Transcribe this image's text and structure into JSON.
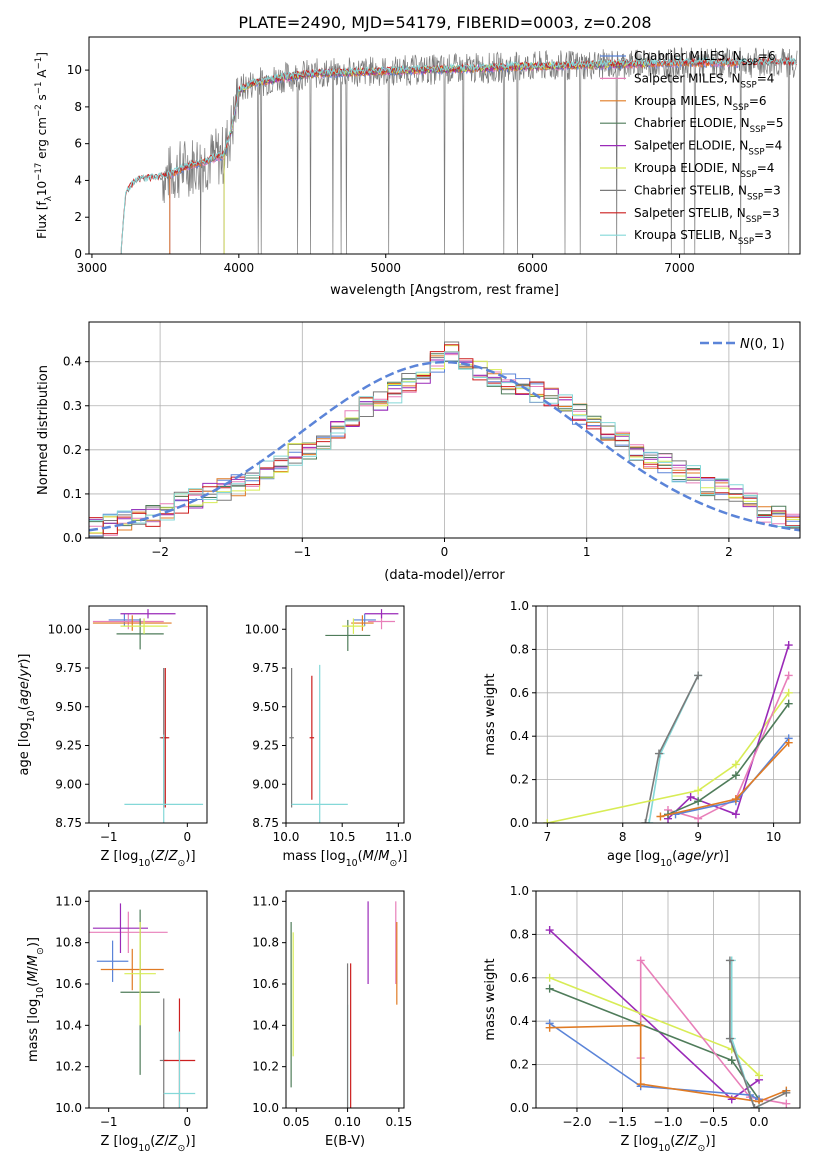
{
  "figure": {
    "title": "PLATE=2490, MJD=54179, FIBERID=0003, z=0.208"
  },
  "colors": {
    "chabrier_miles": "#5b84d8",
    "salpeter_miles": "#e87fb9",
    "kroupa_miles": "#e07b24",
    "chabrier_elodie": "#4f7c5a",
    "salpeter_elodie": "#9a2ab8",
    "kroupa_elodie": "#d8ec55",
    "chabrier_stelib": "#7a7a7a",
    "salpeter_stelib": "#cc1f1f",
    "kroupa_stelib": "#84d8d8",
    "normal": "#5b84d8",
    "grid": "#b0b0b0"
  },
  "chart_data": [
    {
      "id": "spectrum",
      "type": "line",
      "xlabel": "wavelength [Angstrom, rest frame]",
      "ylabel_parts": [
        "Flux [f",
        "λ",
        "10",
        "−17",
        " erg cm",
        "−2",
        " s",
        "−1",
        " A",
        "−1",
        "]"
      ],
      "xlim": [
        2980,
        7820
      ],
      "ylim": [
        0,
        11.8
      ],
      "xticks": [
        3000,
        4000,
        5000,
        6000,
        7000
      ],
      "yticks": [
        0,
        2,
        4,
        6,
        8,
        10
      ],
      "grid": false,
      "legend_position": "right",
      "legend": [
        {
          "label": "Chabrier MILES, N",
          "sub": "SSP",
          "tail": "=6",
          "color": "#5b84d8"
        },
        {
          "label": "Salpeter MILES, N",
          "sub": "SSP",
          "tail": "=4",
          "color": "#e87fb9"
        },
        {
          "label": "Kroupa MILES, N",
          "sub": "SSP",
          "tail": "=6",
          "color": "#e07b24"
        },
        {
          "label": "Chabrier ELODIE, N",
          "sub": "SSP",
          "tail": "=5",
          "color": "#4f7c5a"
        },
        {
          "label": "Salpeter ELODIE, N",
          "sub": "SSP",
          "tail": "=4",
          "color": "#9a2ab8"
        },
        {
          "label": "Kroupa ELODIE, N",
          "sub": "SSP",
          "tail": "=4",
          "color": "#d8ec55"
        },
        {
          "label": "Chabrier STELIB, N",
          "sub": "SSP",
          "tail": "=3",
          "color": "#7a7a7a"
        },
        {
          "label": "Salpeter STELIB, N",
          "sub": "SSP",
          "tail": "=3",
          "color": "#cc1f1f"
        },
        {
          "label": "Kroupa STELIB, N",
          "sub": "SSP",
          "tail": "=3",
          "color": "#84d8d8"
        }
      ],
      "model_continuum": {
        "x": [
          3200,
          3230,
          3300,
          3400,
          3500,
          3600,
          3700,
          3800,
          3900,
          3950,
          4000,
          4100,
          4300,
          4500,
          4800,
          5200,
          5600,
          6000,
          6500,
          7000,
          7500,
          7800
        ],
        "y": [
          0.3,
          3.3,
          4.0,
          4.1,
          4.2,
          4.6,
          4.9,
          5.1,
          5.4,
          6.8,
          8.9,
          9.3,
          9.6,
          9.8,
          9.9,
          10.0,
          10.1,
          10.2,
          10.3,
          10.4,
          10.4,
          10.4
        ]
      },
      "model_start_wavelength": {
        "Chabrier MILES": 3530,
        "Salpeter MILES": 3530,
        "Kroupa MILES": 3530,
        "Chabrier ELODIE": 3900,
        "Salpeter ELODIE": 3900,
        "Kroupa ELODIE": 3900,
        "Chabrier STELIB": 3200,
        "Salpeter STELIB": 3200,
        "Kroupa STELIB": 3200
      },
      "model_end_wavelength": {
        "Chabrier MILES": 7400,
        "Salpeter MILES": 7400,
        "Kroupa MILES": 7400,
        "Chabrier ELODIE": 6800,
        "Salpeter ELODIE": 6800,
        "Kroupa ELODIE": 6800,
        "Chabrier STELIB": 7800,
        "Salpeter STELIB": 7800,
        "Kroupa STELIB": 7800
      },
      "data_spectrum": {
        "x_range": [
          3480,
          7800
        ],
        "noise_amplitude": 1.2
      }
    },
    {
      "id": "residuals",
      "type": "histogram",
      "xlabel": "(data-model)/error",
      "ylabel": "Normed distribution",
      "xlim": [
        -2.5,
        2.5
      ],
      "ylim": [
        0,
        0.49
      ],
      "xticks": [
        -2,
        -1,
        0,
        1,
        2
      ],
      "yticks": [
        0.0,
        0.1,
        0.2,
        0.3,
        0.4
      ],
      "grid": true,
      "legend_position": "top-right",
      "legend_label": "N(0,1)",
      "bins": {
        "start": -2.5,
        "width": 0.1,
        "count": 50
      },
      "base_curve": [
        0.025,
        0.03,
        0.04,
        0.05,
        0.05,
        0.06,
        0.08,
        0.09,
        0.1,
        0.11,
        0.12,
        0.13,
        0.15,
        0.17,
        0.19,
        0.2,
        0.22,
        0.24,
        0.27,
        0.3,
        0.31,
        0.33,
        0.35,
        0.37,
        0.4,
        0.42,
        0.4,
        0.38,
        0.36,
        0.35,
        0.34,
        0.33,
        0.32,
        0.3,
        0.28,
        0.26,
        0.24,
        0.22,
        0.2,
        0.18,
        0.17,
        0.15,
        0.14,
        0.12,
        0.11,
        0.1,
        0.08,
        0.06,
        0.05,
        0.04
      ]
    },
    {
      "id": "age_vs_Z",
      "type": "scatter",
      "xlabel": "Z [log10(Z/Z⊙)]",
      "ylabel": "age  [log10(age/yr)]",
      "xlim": [
        -1.25,
        0.25
      ],
      "ylim": [
        8.75,
        10.15
      ],
      "xticks": [
        -1,
        0
      ],
      "yticks": [
        8.75,
        9.0,
        9.25,
        9.5,
        9.75,
        10.0
      ],
      "grid": false,
      "points": [
        {
          "model": "Chabrier MILES",
          "color": "#5b84d8",
          "x": -0.8,
          "xerr": 0.2,
          "y": 10.06,
          "yerr": 0.04
        },
        {
          "model": "Salpeter MILES",
          "color": "#e87fb9",
          "x": -0.75,
          "xerr": 0.45,
          "y": 10.05,
          "yerr": 0.05
        },
        {
          "model": "Kroupa MILES",
          "color": "#e07b24",
          "x": -0.7,
          "xerr": 0.5,
          "y": 10.04,
          "yerr": 0.05
        },
        {
          "model": "Chabrier ELODIE",
          "color": "#4f7c5a",
          "x": -0.6,
          "xerr": 0.3,
          "y": 9.97,
          "yerr": 0.1
        },
        {
          "model": "Salpeter ELODIE",
          "color": "#9a2ab8",
          "x": -0.5,
          "xerr": 0.35,
          "y": 10.1,
          "yerr": 0.03
        },
        {
          "model": "Kroupa ELODIE",
          "color": "#d8ec55",
          "x": -0.55,
          "xerr": 0.3,
          "y": 10.02,
          "yerr": 0.05
        },
        {
          "model": "Chabrier STELIB",
          "color": "#7a7a7a",
          "x": -0.3,
          "xerr": 0.05,
          "y": 9.3,
          "yerr": 0.45
        },
        {
          "model": "Salpeter STELIB",
          "color": "#cc1f1f",
          "x": -0.28,
          "xerr": 0.05,
          "y": 9.3,
          "yerr": 0.45
        },
        {
          "model": "Kroupa STELIB",
          "color": "#84d8d8",
          "x": -0.3,
          "xerr": 0.5,
          "y": 8.87,
          "yerr": 0.45
        }
      ]
    },
    {
      "id": "age_vs_mass",
      "type": "scatter",
      "xlabel": "mass [log10(M/M⊙)]",
      "ylabel": "",
      "xlim": [
        10.0,
        11.05
      ],
      "ylim": [
        8.75,
        10.15
      ],
      "xticks": [
        10.0,
        10.5,
        11.0
      ],
      "yticks": [
        8.75,
        9.0,
        9.25,
        9.5,
        9.75,
        10.0
      ],
      "grid": false,
      "points": [
        {
          "model": "Chabrier MILES",
          "color": "#5b84d8",
          "x": 10.7,
          "xerr": 0.1,
          "y": 10.06,
          "yerr": 0.04
        },
        {
          "model": "Salpeter MILES",
          "color": "#e87fb9",
          "x": 10.85,
          "xerr": 0.12,
          "y": 10.05,
          "yerr": 0.05
        },
        {
          "model": "Kroupa MILES",
          "color": "#e07b24",
          "x": 10.68,
          "xerr": 0.1,
          "y": 10.04,
          "yerr": 0.05
        },
        {
          "model": "Chabrier ELODIE",
          "color": "#4f7c5a",
          "x": 10.55,
          "xerr": 0.2,
          "y": 9.96,
          "yerr": 0.1
        },
        {
          "model": "Salpeter ELODIE",
          "color": "#9a2ab8",
          "x": 10.85,
          "xerr": 0.15,
          "y": 10.1,
          "yerr": 0.03
        },
        {
          "model": "Kroupa ELODIE",
          "color": "#d8ec55",
          "x": 10.6,
          "xerr": 0.1,
          "y": 10.02,
          "yerr": 0.05
        },
        {
          "model": "Chabrier STELIB",
          "color": "#7a7a7a",
          "x": 10.05,
          "xerr": 0.02,
          "y": 9.3,
          "yerr": 0.45
        },
        {
          "model": "Salpeter STELIB",
          "color": "#cc1f1f",
          "x": 10.23,
          "xerr": 0.02,
          "y": 9.3,
          "yerr": 0.4
        },
        {
          "model": "Kroupa STELIB",
          "color": "#84d8d8",
          "x": 10.3,
          "xerr": 0.25,
          "y": 8.87,
          "yerr": 0.9
        }
      ]
    },
    {
      "id": "weight_vs_age",
      "type": "line",
      "xlabel": "age  [log10(age/yr)]",
      "ylabel": "mass weight",
      "xlim": [
        6.85,
        10.35
      ],
      "ylim": [
        0,
        1.0
      ],
      "xticks": [
        7,
        8,
        9,
        10
      ],
      "yticks": [
        0.0,
        0.2,
        0.4,
        0.6,
        0.8,
        1.0
      ],
      "grid": true,
      "series": [
        {
          "model": "Kroupa STELIB",
          "color": "#84d8d8",
          "x": [
            8.35,
            8.5,
            9.0
          ],
          "y": [
            0.0,
            0.32,
            0.68
          ]
        },
        {
          "model": "Chabrier STELIB",
          "color": "#7a7a7a",
          "x": [
            8.3,
            8.48,
            9.0
          ],
          "y": [
            0.0,
            0.32,
            0.68
          ]
        },
        {
          "model": "Kroupa ELODIE",
          "color": "#d8ec55",
          "x": [
            7.0,
            9.0,
            9.5,
            10.2
          ],
          "y": [
            0.0,
            0.15,
            0.27,
            0.6
          ]
        },
        {
          "model": "Salpeter ELODIE",
          "color": "#9a2ab8",
          "x": [
            8.6,
            8.9,
            9.5,
            10.2
          ],
          "y": [
            0.02,
            0.12,
            0.04,
            0.82
          ]
        },
        {
          "model": "Salpeter MILES",
          "color": "#e87fb9",
          "x": [
            8.6,
            9.0,
            9.5,
            10.2
          ],
          "y": [
            0.06,
            0.02,
            0.11,
            0.68
          ]
        },
        {
          "model": "Chabrier ELODIE",
          "color": "#4f7c5a",
          "x": [
            8.6,
            9.0,
            9.5,
            10.2
          ],
          "y": [
            0.04,
            0.1,
            0.22,
            0.55
          ]
        },
        {
          "model": "Chabrier MILES",
          "color": "#5b84d8",
          "x": [
            8.7,
            9.5,
            10.2
          ],
          "y": [
            0.04,
            0.1,
            0.39
          ]
        },
        {
          "model": "Kroupa MILES",
          "color": "#e07b24",
          "x": [
            8.5,
            9.5,
            10.2
          ],
          "y": [
            0.03,
            0.11,
            0.37
          ]
        }
      ]
    },
    {
      "id": "mass_vs_Z",
      "type": "scatter",
      "xlabel": "Z [log10(Z/Z⊙)]",
      "ylabel": "mass [log10(M/M⊙)]",
      "xlim": [
        -1.25,
        0.25
      ],
      "ylim": [
        10.0,
        11.05
      ],
      "xticks": [
        -1,
        0
      ],
      "yticks": [
        10.0,
        10.2,
        10.4,
        10.6,
        10.8,
        11.0
      ],
      "grid": false,
      "points": [
        {
          "model": "Chabrier MILES",
          "color": "#5b84d8",
          "x": -0.95,
          "xerr": 0.2,
          "y": 10.71,
          "yerr": 0.1
        },
        {
          "model": "Salpeter MILES",
          "color": "#e87fb9",
          "x": -0.75,
          "xerr": 0.5,
          "y": 10.85,
          "yerr": 0.1
        },
        {
          "model": "Kroupa MILES",
          "color": "#e07b24",
          "x": -0.7,
          "xerr": 0.4,
          "y": 10.67,
          "yerr": 0.1
        },
        {
          "model": "Chabrier ELODIE",
          "color": "#4f7c5a",
          "x": -0.6,
          "xerr": 0.25,
          "y": 10.56,
          "yerr": 0.4
        },
        {
          "model": "Salpeter ELODIE",
          "color": "#9a2ab8",
          "x": -0.85,
          "xerr": 0.35,
          "y": 10.87,
          "yerr": 0.12
        },
        {
          "model": "Kroupa ELODIE",
          "color": "#d8ec55",
          "x": -0.6,
          "xerr": 0.2,
          "y": 10.65,
          "yerr": 0.25
        },
        {
          "model": "Chabrier STELIB",
          "color": "#7a7a7a",
          "x": -0.3,
          "xerr": 0.05,
          "y": 10.23,
          "yerr": 0.3
        },
        {
          "model": "Salpeter STELIB",
          "color": "#cc1f1f",
          "x": -0.1,
          "xerr": 0.2,
          "y": 10.23,
          "yerr": 0.3
        },
        {
          "model": "Kroupa STELIB",
          "color": "#84d8d8",
          "x": -0.1,
          "xerr": 0.2,
          "y": 10.07,
          "yerr": 0.3
        }
      ]
    },
    {
      "id": "mass_vs_ebv",
      "type": "scatter",
      "xlabel": "E(B-V)",
      "ylabel": "",
      "xlim": [
        0.04,
        0.155
      ],
      "ylim": [
        10.0,
        11.05
      ],
      "xticks": [
        0.05,
        0.1,
        0.15
      ],
      "yticks": [
        10.0,
        10.2,
        10.4,
        10.6,
        10.8,
        11.0
      ],
      "grid": false,
      "points": [
        {
          "model": "Kroupa ELODIE",
          "color": "#d8ec55",
          "x": 0.047,
          "yerr": 0.3,
          "y": 10.55
        },
        {
          "model": "Chabrier ELODIE",
          "color": "#4f7c5a",
          "x": 0.045,
          "yerr": 0.4,
          "y": 10.5
        },
        {
          "model": "Kroupa STELIB",
          "color": "#84d8d8",
          "x": 0.1,
          "yerr": 0.4,
          "y": 10.1
        },
        {
          "model": "Chabrier STELIB",
          "color": "#7a7a7a",
          "x": 0.1,
          "yerr": 0.4,
          "y": 10.3
        },
        {
          "model": "Salpeter STELIB",
          "color": "#cc1f1f",
          "x": 0.103,
          "yerr": 0.4,
          "y": 10.3
        },
        {
          "model": "Salpeter ELODIE",
          "color": "#9a2ab8",
          "x": 0.12,
          "yerr": 0.2,
          "y": 10.8
        },
        {
          "model": "Salpeter MILES",
          "color": "#e87fb9",
          "x": 0.147,
          "yerr": 0.2,
          "y": 10.8
        },
        {
          "model": "Kroupa MILES",
          "color": "#e07b24",
          "x": 0.148,
          "yerr": 0.2,
          "y": 10.7
        }
      ]
    },
    {
      "id": "weight_vs_Z",
      "type": "line",
      "xlabel": "Z [log10(Z/Z⊙)]",
      "ylabel": "mass weight",
      "xlim": [
        -2.45,
        0.45
      ],
      "ylim": [
        0,
        1.0
      ],
      "xticks": [
        -2.0,
        -1.5,
        -1.0,
        -0.5,
        0.0
      ],
      "yticks": [
        0.0,
        0.2,
        0.4,
        0.6,
        0.8,
        1.0
      ],
      "grid": true,
      "series": [
        {
          "model": "Salpeter ELODIE",
          "color": "#9a2ab8",
          "x": [
            -2.3,
            -0.3,
            0.0
          ],
          "y": [
            0.82,
            0.04,
            0.13
          ]
        },
        {
          "model": "Kroupa ELODIE",
          "color": "#d8ec55",
          "x": [
            -2.3,
            -0.3,
            0.0
          ],
          "y": [
            0.6,
            0.27,
            0.15
          ]
        },
        {
          "model": "Chabrier ELODIE",
          "color": "#4f7c5a",
          "x": [
            -2.3,
            -0.3,
            0.0
          ],
          "y": [
            0.55,
            0.22,
            0.04
          ]
        },
        {
          "model": "Salpeter MILES",
          "color": "#e87fb9",
          "x": [
            -1.3,
            -1.3,
            -0.1,
            0.3
          ],
          "y": [
            0.23,
            0.68,
            0.05,
            0.02
          ]
        },
        {
          "model": "Chabrier MILES",
          "color": "#5b84d8",
          "x": [
            -2.3,
            -1.3,
            -0.1,
            0.0
          ],
          "y": [
            0.39,
            0.1,
            0.06,
            0.04
          ]
        },
        {
          "model": "Kroupa MILES",
          "color": "#e07b24",
          "x": [
            -2.3,
            -1.3,
            -1.3,
            0.0,
            0.3
          ],
          "y": [
            0.37,
            0.38,
            0.11,
            0.03,
            0.08
          ]
        },
        {
          "model": "Kroupa STELIB",
          "color": "#84d8d8",
          "x": [
            -0.3,
            -0.3,
            -0.05,
            0.0
          ],
          "y": [
            0.68,
            0.32,
            0.0,
            0.0
          ]
        },
        {
          "model": "Chabrier STELIB",
          "color": "#7a7a7a",
          "x": [
            -0.32,
            -0.32,
            -0.05,
            0.3
          ],
          "y": [
            0.68,
            0.32,
            0.0,
            0.07
          ]
        }
      ]
    }
  ]
}
